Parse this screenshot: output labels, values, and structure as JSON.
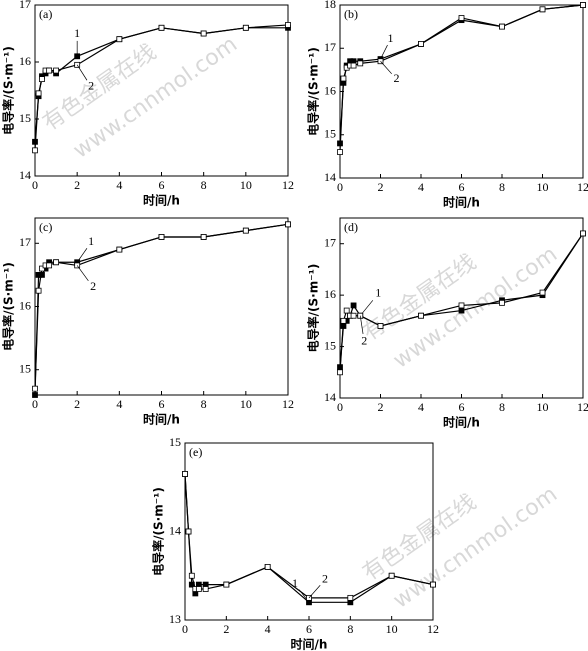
{
  "watermark": [
    "有色金属在线",
    "www.cnnmol.com"
  ],
  "chart_data": [
    {
      "type": "line",
      "title": "(a)",
      "x_label": "时间/h",
      "y_label": "电导率/(S·m⁻¹)",
      "x": [
        0,
        0.17,
        0.33,
        0.5,
        0.67,
        1,
        2,
        4,
        6,
        8,
        10,
        12
      ],
      "xlim": [
        0,
        12
      ],
      "xticks": [
        0,
        2,
        4,
        6,
        8,
        10,
        12
      ],
      "ylim": [
        14,
        17
      ],
      "yticks": [
        14,
        15,
        16,
        17
      ],
      "series": [
        {
          "name": "1",
          "color": "#000000",
          "marker": "filled",
          "values": [
            14.6,
            15.4,
            15.75,
            15.8,
            15.85,
            15.8,
            16.1,
            16.4,
            16.6,
            16.5,
            16.6,
            16.6
          ]
        },
        {
          "name": "2",
          "color": "#000000",
          "marker": "open",
          "values": [
            14.45,
            15.45,
            15.7,
            15.85,
            15.85,
            15.85,
            15.95,
            16.4,
            16.6,
            16.5,
            16.6,
            16.65
          ]
        }
      ]
    },
    {
      "type": "line",
      "title": "(b)",
      "x_label": "时间/h",
      "y_label": "电导率/(S·m⁻¹)",
      "x": [
        0,
        0.17,
        0.33,
        0.5,
        0.67,
        1,
        2,
        4,
        6,
        8,
        10,
        12
      ],
      "xlim": [
        0,
        12
      ],
      "xticks": [
        0,
        2,
        4,
        6,
        8,
        10,
        12
      ],
      "ylim": [
        14,
        18
      ],
      "yticks": [
        14,
        15,
        16,
        17,
        18
      ],
      "series": [
        {
          "name": "1",
          "color": "#000000",
          "marker": "filled",
          "values": [
            14.8,
            16.2,
            16.6,
            16.7,
            16.7,
            16.7,
            16.75,
            17.1,
            17.65,
            17.5,
            17.9,
            18.0
          ]
        },
        {
          "name": "2",
          "color": "#000000",
          "marker": "open",
          "values": [
            14.6,
            16.3,
            16.55,
            16.6,
            16.6,
            16.65,
            16.7,
            17.1,
            17.7,
            17.5,
            17.9,
            18.0
          ]
        }
      ]
    },
    {
      "type": "line",
      "title": "(c)",
      "x_label": "时间/h",
      "y_label": "电导率/(S·m⁻¹)",
      "x": [
        0,
        0.17,
        0.33,
        0.5,
        0.67,
        1,
        2,
        4,
        6,
        8,
        10,
        12
      ],
      "xlim": [
        0,
        12
      ],
      "xticks": [
        0,
        2,
        4,
        6,
        8,
        10,
        12
      ],
      "ylim": [
        14.6,
        17.4
      ],
      "yticks": [
        15,
        16,
        17
      ],
      "series": [
        {
          "name": "1",
          "color": "#000000",
          "marker": "filled",
          "values": [
            14.6,
            16.5,
            16.5,
            16.6,
            16.7,
            16.7,
            16.7,
            16.9,
            17.1,
            17.1,
            17.2,
            17.3
          ]
        },
        {
          "name": "2",
          "color": "#000000",
          "marker": "open",
          "values": [
            14.7,
            16.25,
            16.6,
            16.65,
            16.65,
            16.7,
            16.65,
            16.9,
            17.1,
            17.1,
            17.2,
            17.3
          ]
        }
      ]
    },
    {
      "type": "line",
      "title": "(d)",
      "x_label": "时间/h",
      "y_label": "电导率/(S·m⁻¹)",
      "x": [
        0,
        0.17,
        0.33,
        0.5,
        0.67,
        1,
        2,
        4,
        6,
        8,
        10,
        12
      ],
      "xlim": [
        0,
        12
      ],
      "xticks": [
        0,
        2,
        4,
        6,
        8,
        10,
        12
      ],
      "ylim": [
        14,
        17.5
      ],
      "yticks": [
        14,
        15,
        16,
        17
      ],
      "series": [
        {
          "name": "1",
          "color": "#000000",
          "marker": "filled",
          "values": [
            14.6,
            15.4,
            15.5,
            15.6,
            15.8,
            15.6,
            15.4,
            15.6,
            15.7,
            15.9,
            16.0,
            17.2
          ]
        },
        {
          "name": "2",
          "color": "#000000",
          "marker": "open",
          "values": [
            14.5,
            15.5,
            15.7,
            15.6,
            15.6,
            15.6,
            15.4,
            15.6,
            15.8,
            15.85,
            16.05,
            17.2
          ]
        }
      ]
    },
    {
      "type": "line",
      "title": "(e)",
      "x_label": "时间/h",
      "y_label": "电导率/(S·m⁻¹)",
      "x": [
        0,
        0.17,
        0.33,
        0.5,
        0.67,
        1,
        2,
        4,
        6,
        8,
        10,
        12
      ],
      "xlim": [
        0,
        12
      ],
      "xticks": [
        0,
        2,
        4,
        6,
        8,
        10,
        12
      ],
      "ylim": [
        13,
        15
      ],
      "yticks": [
        13,
        14,
        15
      ],
      "series": [
        {
          "name": "1",
          "color": "#000000",
          "marker": "filled",
          "values": [
            14.65,
            14.0,
            13.4,
            13.3,
            13.4,
            13.4,
            13.4,
            13.6,
            13.2,
            13.2,
            13.5,
            13.4
          ]
        },
        {
          "name": "2",
          "color": "#000000",
          "marker": "open",
          "values": [
            14.65,
            14.0,
            13.5,
            13.35,
            13.35,
            13.35,
            13.4,
            13.6,
            13.25,
            13.25,
            13.5,
            13.4
          ]
        }
      ]
    }
  ]
}
